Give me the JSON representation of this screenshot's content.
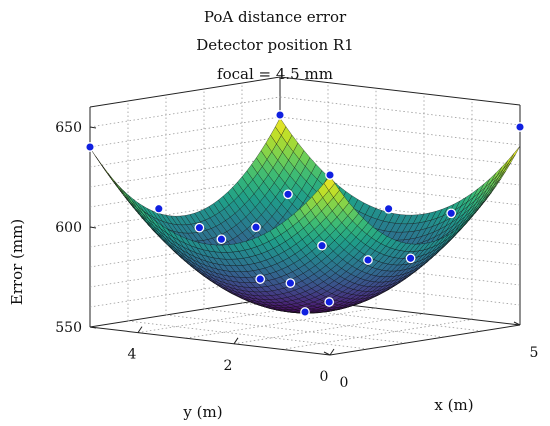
{
  "chart_data": {
    "type": "surface3d",
    "title_lines": [
      "PoA distance error",
      "Detector position R1",
      "focal = 4.5 mm"
    ],
    "xlabel": "x (m)",
    "ylabel": "y (m)",
    "zlabel": "Error (mm)",
    "xlim": [
      0,
      5
    ],
    "ylim": [
      0,
      5
    ],
    "zlim": [
      550,
      660
    ],
    "x_ticks": [
      0,
      5
    ],
    "y_ticks": [
      0,
      2,
      4
    ],
    "z_ticks": [
      550,
      600,
      650
    ],
    "grid": true,
    "colormap": "viridis",
    "marker_color": "#1020e0",
    "surface": {
      "form": "paraboloid",
      "min_value": 557,
      "min_at": {
        "x": 2.5,
        "y": 2.5
      },
      "curvature_per_m2": 6.6,
      "grid_step_m": 0.125
    },
    "markers": [
      {
        "x": 0,
        "y": 0,
        "z": 640
      },
      {
        "x": 5,
        "y": 0,
        "z": 649
      },
      {
        "x": 0,
        "y": 5,
        "z": 640
      },
      {
        "x": 5,
        "y": 5,
        "z": 641
      },
      {
        "x": 0.8,
        "y": 0.8,
        "z": 600
      },
      {
        "x": 4.2,
        "y": 0.8,
        "z": 606
      },
      {
        "x": 0.8,
        "y": 4.2,
        "z": 609
      },
      {
        "x": 4.2,
        "y": 4.2,
        "z": 606
      },
      {
        "x": 2.5,
        "y": 0.3,
        "z": 590
      },
      {
        "x": 2.5,
        "y": 4.7,
        "z": 593
      },
      {
        "x": 0.3,
        "y": 2.5,
        "z": 600
      },
      {
        "x": 4.7,
        "y": 2.5,
        "z": 602
      },
      {
        "x": 2.5,
        "y": 2.5,
        "z": 557
      },
      {
        "x": 2.0,
        "y": 1.6,
        "z": 566
      },
      {
        "x": 3.0,
        "y": 3.2,
        "z": 568
      },
      {
        "x": 2.6,
        "y": 3.6,
        "z": 596
      },
      {
        "x": 1.7,
        "y": 2.8,
        "z": 575
      },
      {
        "x": 3.4,
        "y": 1.9,
        "z": 582
      }
    ]
  }
}
